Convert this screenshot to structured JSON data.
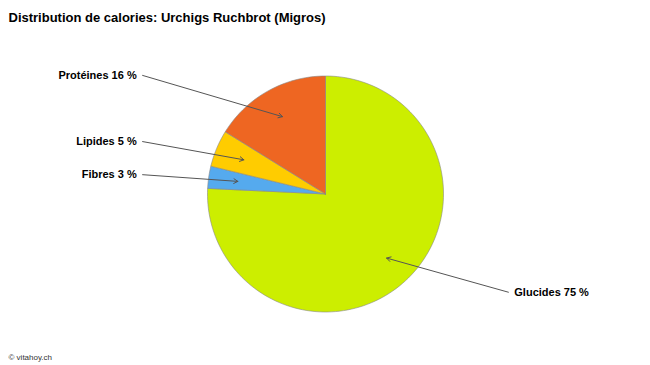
{
  "chart_data": {
    "type": "pie",
    "title": "Distribution de calories: Urchigs Ruchbrot (Migros)",
    "categories": [
      "Glucides 75 %",
      "Fibres 3 %",
      "Lipides 5 %",
      "Protéines 16 %"
    ],
    "values": [
      75,
      3,
      5,
      16
    ],
    "colors": [
      "#CCEE00",
      "#55AAEE",
      "#FFCC00",
      "#EE6622"
    ],
    "annotations": [
      "© vitahoy.ch"
    ]
  }
}
